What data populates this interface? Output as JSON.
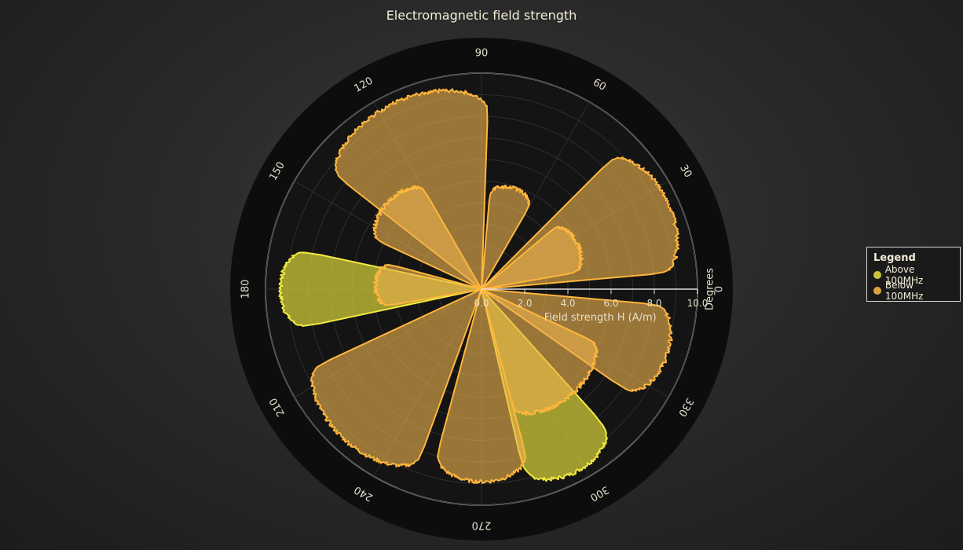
{
  "title": "Electromagnetic field strength",
  "legend": {
    "title": "Legend",
    "items": [
      {
        "label": "Above 100MHz",
        "color": "#c9c23a"
      },
      {
        "label": "Below 100MHz",
        "color": "#d9a441"
      }
    ]
  },
  "chart_data": {
    "type": "polar-area",
    "title": "Electromagnetic field strength",
    "radial_axis": {
      "label": "Field strength H (A/m)",
      "range": [
        0,
        10
      ],
      "ticks": [
        "0.0",
        "2.0",
        "4.0",
        "6.0",
        "8.0",
        "10.0"
      ]
    },
    "angular_axis": {
      "label": "Degrees",
      "ticks": [
        "90",
        "60",
        "30",
        "0",
        "330",
        "300",
        "270",
        "240",
        "210",
        "180",
        "150",
        "120"
      ],
      "direction": "counterclockwise"
    },
    "series": [
      {
        "name": "Above 100MHz",
        "color": "#e8e04a",
        "petals": [
          {
            "from_deg": 168,
            "to_deg": 192,
            "peak": 9.4
          },
          {
            "from_deg": 283,
            "to_deg": 312,
            "peak": 9.6
          }
        ]
      },
      {
        "name": "Below 100MHz",
        "color": "#f2b04a",
        "petals": [
          {
            "from_deg": 88,
            "to_deg": 142,
            "peak": 9.6
          },
          {
            "from_deg": 5,
            "to_deg": 45,
            "peak": 9.6
          },
          {
            "from_deg": 325,
            "to_deg": 355,
            "peak": 9.2
          },
          {
            "from_deg": 205,
            "to_deg": 250,
            "peak": 9.5
          },
          {
            "from_deg": 255,
            "to_deg": 285,
            "peak": 9.0
          },
          {
            "from_deg": 165,
            "to_deg": 190,
            "peak": 5.0
          },
          {
            "from_deg": 120,
            "to_deg": 155,
            "peak": 6.0
          },
          {
            "from_deg": 60,
            "to_deg": 85,
            "peak": 5.0
          },
          {
            "from_deg": 10,
            "to_deg": 40,
            "peak": 5.0
          },
          {
            "from_deg": 285,
            "to_deg": 335,
            "peak": 6.5
          }
        ]
      }
    ]
  }
}
